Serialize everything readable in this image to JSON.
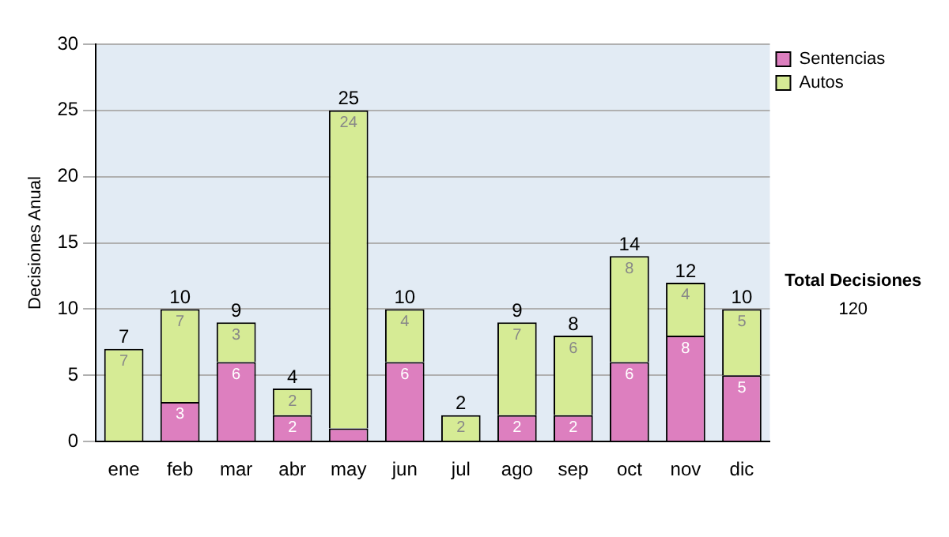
{
  "chart_data": {
    "type": "bar",
    "stacked": true,
    "ylabel": "Decisiones Anual",
    "categories": [
      "ene",
      "feb",
      "mar",
      "abr",
      "may",
      "jun",
      "jul",
      "ago",
      "sep",
      "oct",
      "nov",
      "dic"
    ],
    "series": [
      {
        "name": "Sentencias",
        "color": "#dd7fbf",
        "values": [
          0,
          3,
          6,
          2,
          1,
          6,
          0,
          2,
          2,
          6,
          8,
          5
        ],
        "value_labels": [
          null,
          "3",
          "6",
          "2",
          null,
          "6",
          null,
          "2",
          "2",
          "6",
          "8",
          "5"
        ]
      },
      {
        "name": "Autos",
        "color": "#d6eb95",
        "values": [
          7,
          7,
          3,
          2,
          24,
          4,
          2,
          7,
          6,
          8,
          4,
          5
        ],
        "value_labels": [
          "7",
          "7",
          "3",
          "2",
          "24",
          "4",
          "2",
          "7",
          "6",
          "8",
          "4",
          "5"
        ]
      }
    ],
    "totals": [
      "7",
      "10",
      "9",
      "4",
      "25",
      "10",
      "2",
      "9",
      "8",
      "14",
      "12",
      "10"
    ],
    "ylim": [
      0,
      30
    ],
    "yticks": [
      0,
      5,
      10,
      15,
      20,
      25,
      30
    ],
    "grid": "y",
    "legend": "right",
    "annotations": [
      "Total Decisiones",
      "120"
    ]
  }
}
